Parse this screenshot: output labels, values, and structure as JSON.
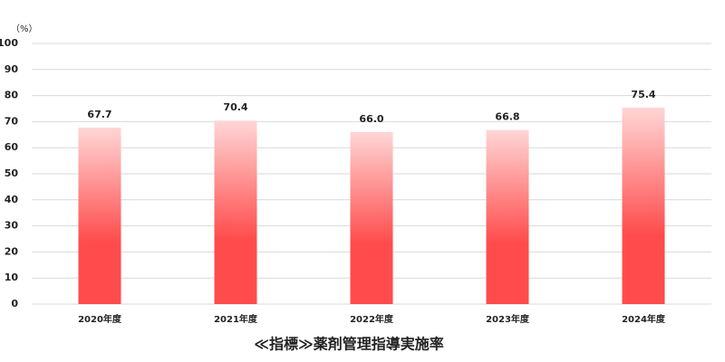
{
  "chart_data": {
    "type": "bar",
    "title": "≪指標≫薬剤管理指導実施率",
    "y_unit": "（%）",
    "categories": [
      "2020年度",
      "2021年度",
      "2022年度",
      "2023年度",
      "2024年度"
    ],
    "values": [
      67.7,
      70.4,
      66.0,
      66.8,
      75.4
    ],
    "value_labels": [
      "67.7",
      "70.4",
      "66.0",
      "66.8",
      "75.4"
    ],
    "color": "#ff4b4b",
    "ylim": [
      0,
      100
    ],
    "yticks": [
      0,
      10,
      20,
      30,
      40,
      50,
      60,
      70,
      80,
      90,
      100
    ],
    "grid": true
  }
}
